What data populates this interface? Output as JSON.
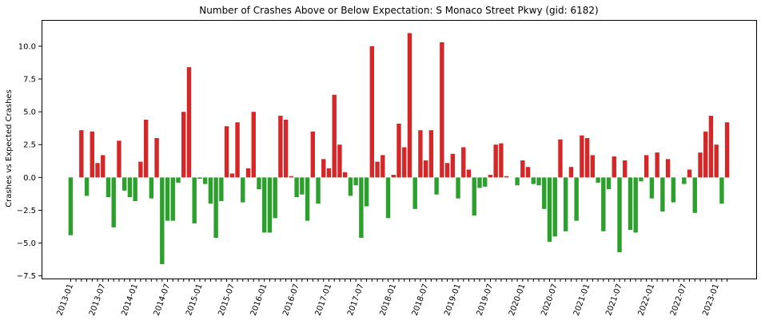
{
  "chart_data": {
    "type": "bar",
    "title": "Number of Crashes Above or Below Expectation: S Monaco Street Pkwy (gid: 6182)",
    "xlabel": "",
    "ylabel": "Crashes vs Expected Crashes",
    "ylim": [
      -7.7,
      12.0
    ],
    "yticks": [
      -7.5,
      -5.0,
      -2.5,
      0.0,
      2.5,
      5.0,
      7.5,
      10.0
    ],
    "ytick_labels": [
      "−7.5",
      "−5.0",
      "−2.5",
      "0.0",
      "2.5",
      "5.0",
      "7.5",
      "10.0"
    ],
    "xtick_labels": [
      "2013-01",
      "2013-07",
      "2014-01",
      "2014-07",
      "2015-01",
      "2015-07",
      "2016-01",
      "2016-07",
      "2017-01",
      "2017-07",
      "2018-01",
      "2018-07",
      "2019-01",
      "2019-07",
      "2020-01",
      "2020-07",
      "2021-01",
      "2021-07",
      "2022-01",
      "2022-07",
      "2023-01"
    ],
    "colors": {
      "positive": "#d62728",
      "negative": "#2ca02c"
    },
    "grid": false,
    "values": [
      -4.4,
      0,
      3.6,
      -1.4,
      3.5,
      1.1,
      1.7,
      -1.5,
      -3.8,
      2.8,
      -1.0,
      -1.5,
      -1.8,
      1.2,
      4.4,
      -1.6,
      3.0,
      -6.6,
      -3.3,
      -3.3,
      -0.4,
      5.0,
      8.4,
      -3.5,
      -0.1,
      -0.5,
      -2.0,
      -4.6,
      -1.8,
      3.9,
      0.3,
      4.2,
      -1.9,
      0.7,
      5.0,
      -0.9,
      -4.2,
      -4.2,
      -3.1,
      4.7,
      4.4,
      0.1,
      -1.5,
      -1.3,
      -3.3,
      3.5,
      -2.0,
      1.4,
      0.7,
      6.3,
      2.5,
      0.4,
      -1.4,
      -0.6,
      -4.6,
      -2.2,
      10.0,
      1.2,
      1.7,
      -3.1,
      0.2,
      4.1,
      2.3,
      11.0,
      -2.4,
      3.6,
      1.3,
      3.6,
      -1.3,
      10.3,
      1.1,
      1.8,
      -1.6,
      2.3,
      0.6,
      -2.9,
      -0.8,
      -0.7,
      0.2,
      2.5,
      2.6,
      0.1,
      0,
      -0.6,
      1.3,
      0.8,
      -0.5,
      -0.6,
      -2.4,
      -4.9,
      -4.5,
      2.9,
      -4.1,
      0.8,
      -3.3,
      3.2,
      3.0,
      1.7,
      -0.4,
      -4.1,
      -0.9,
      1.6,
      -5.7,
      1.3,
      -4.0,
      -4.2,
      -0.3,
      1.7,
      -1.6,
      1.9,
      -2.6,
      1.4,
      -1.9,
      0,
      -0.5,
      0.6,
      -2.7,
      1.9,
      3.5,
      4.7,
      2.5,
      -2.0,
      4.2
    ]
  }
}
